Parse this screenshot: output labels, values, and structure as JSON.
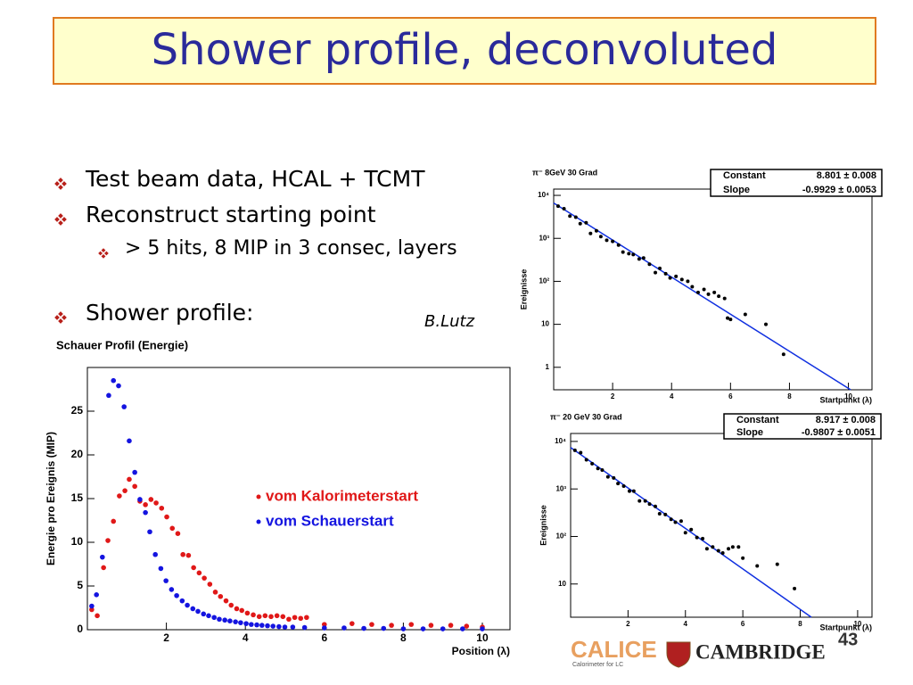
{
  "title": "Shower profile, deconvoluted",
  "bullets": [
    {
      "text": "Test beam data, HCAL + TCMT",
      "level": 1
    },
    {
      "text": "Reconstruct starting point",
      "level": 1
    },
    {
      "text": "> 5 hits, 8 MIP in 3 consec, layers",
      "level": 2
    },
    {
      "text": "Shower profile:",
      "level": 1
    }
  ],
  "author": "B.Lutz",
  "footer": {
    "logo": "CALICE",
    "logo_subtitle": "Calorimeter for LC",
    "university": "CAMBRIDGE",
    "page_number": "43"
  },
  "chart_data": [
    {
      "type": "scatter",
      "title": "Schauer Profil (Energie)",
      "x_label": "Position (λ)",
      "y_label": "Energie pro Ereignis (MIP)",
      "xlim": [
        0,
        10.7
      ],
      "ylim": [
        0,
        30
      ],
      "xticks": [
        2,
        4,
        6,
        8,
        10
      ],
      "yticks": [
        0,
        5,
        10,
        15,
        20,
        25
      ],
      "legend": "center right",
      "series": [
        {
          "name": "vom Kalorimeterstart",
          "color": "#e01818",
          "x": [
            0.11,
            0.25,
            0.41,
            0.52,
            0.66,
            0.81,
            0.95,
            1.06,
            1.2,
            1.33,
            1.47,
            1.61,
            1.74,
            1.88,
            2.01,
            2.15,
            2.29,
            2.42,
            2.56,
            2.69,
            2.83,
            2.96,
            3.1,
            3.24,
            3.37,
            3.51,
            3.64,
            3.78,
            3.91,
            4.05,
            4.2,
            4.35,
            4.5,
            4.65,
            4.8,
            4.95,
            5.1,
            5.25,
            5.4,
            5.55,
            6.0,
            6.7,
            7.2,
            7.7,
            8.2,
            8.7,
            9.2,
            9.6,
            10.0
          ],
          "values": [
            2.3,
            1.6,
            7.1,
            10.2,
            12.4,
            15.3,
            15.9,
            17.2,
            16.4,
            14.7,
            14.3,
            14.9,
            14.5,
            13.9,
            12.9,
            11.6,
            11.0,
            8.6,
            8.5,
            7.1,
            6.5,
            5.9,
            5.2,
            4.3,
            3.8,
            3.3,
            2.8,
            2.4,
            2.2,
            1.9,
            1.7,
            1.5,
            1.6,
            1.5,
            1.6,
            1.5,
            1.2,
            1.4,
            1.3,
            1.4,
            0.6,
            0.7,
            0.6,
            0.5,
            0.6,
            0.5,
            0.5,
            0.4,
            0.3
          ]
        },
        {
          "name": "vom Schauerstart",
          "color": "#1414e0",
          "x": [
            0.11,
            0.23,
            0.38,
            0.54,
            0.66,
            0.79,
            0.93,
            1.06,
            1.2,
            1.33,
            1.47,
            1.58,
            1.72,
            1.86,
            1.99,
            2.13,
            2.26,
            2.4,
            2.53,
            2.67,
            2.8,
            2.94,
            3.07,
            3.21,
            3.34,
            3.48,
            3.61,
            3.75,
            3.88,
            4.02,
            4.15,
            4.29,
            4.42,
            4.56,
            4.7,
            4.85,
            5.0,
            5.2,
            5.5,
            6.0,
            6.5,
            7.0,
            7.5,
            8.0,
            8.5,
            9.0,
            9.5,
            10.0
          ],
          "values": [
            2.7,
            4.0,
            8.3,
            26.8,
            28.5,
            27.9,
            25.5,
            21.6,
            18.0,
            14.9,
            13.4,
            11.2,
            8.6,
            7.0,
            5.6,
            4.6,
            3.9,
            3.3,
            2.8,
            2.4,
            2.1,
            1.8,
            1.6,
            1.4,
            1.2,
            1.1,
            1.0,
            0.9,
            0.8,
            0.7,
            0.6,
            0.55,
            0.5,
            0.45,
            0.4,
            0.35,
            0.3,
            0.3,
            0.25,
            0.2,
            0.2,
            0.15,
            0.15,
            0.1,
            0.1,
            0.1,
            0.1,
            0.1
          ]
        }
      ]
    },
    {
      "type": "scatter",
      "title": "π⁻ 8GeV 30 Grad",
      "x_label": "Startpunkt (λ)",
      "y_label": "Ereignisse",
      "log_y": true,
      "xlim": [
        0,
        10.8
      ],
      "ylim": [
        0.3,
        14000
      ],
      "xticks": [
        2,
        4,
        6,
        8,
        10
      ],
      "yticks": [
        1,
        10,
        {
          "value": 100,
          "label": "10²"
        },
        {
          "value": 1000,
          "label": "10³"
        },
        {
          "value": 10000,
          "label": "10⁴"
        }
      ],
      "series": [
        {
          "color": "#000000",
          "x": [
            0.15,
            0.35,
            0.55,
            0.75,
            0.9,
            1.1,
            1.25,
            1.45,
            1.6,
            1.8,
            2.0,
            2.2,
            2.35,
            2.55,
            2.7,
            2.9,
            3.05,
            3.25,
            3.45,
            3.6,
            3.8,
            3.95,
            4.15,
            4.35,
            4.55,
            4.7,
            4.9,
            5.1,
            5.25,
            5.45,
            5.6,
            5.8,
            5.9,
            6.0,
            6.5,
            7.2,
            7.8
          ],
          "values": [
            5600,
            4900,
            3300,
            3100,
            2200,
            2300,
            1300,
            1500,
            1100,
            900,
            850,
            700,
            480,
            440,
            420,
            330,
            350,
            250,
            160,
            200,
            150,
            120,
            130,
            110,
            100,
            75,
            55,
            65,
            50,
            55,
            45,
            40,
            14,
            13,
            17,
            10,
            2
          ]
        }
      ],
      "fit": {
        "color": "#1030e0",
        "names": [
          "Constant",
          "Slope"
        ],
        "values": [
          8.801,
          -0.9929
        ],
        "value_labels": [
          "8.801 ± 0.008",
          "-0.9929 ± 0.0053"
        ]
      }
    },
    {
      "type": "scatter",
      "title": "π⁻ 20 GeV 30 Grad",
      "x_label": "Startpunkt (λ)",
      "y_label": "Ereignisse",
      "log_y": true,
      "xlim": [
        0,
        10.5
      ],
      "ylim": [
        2,
        14700
      ],
      "xticks": [
        2,
        4,
        6,
        8,
        10
      ],
      "yticks": [
        10,
        {
          "value": 100,
          "label": "10²"
        },
        {
          "value": 1000,
          "label": "10³"
        },
        {
          "value": 10000,
          "label": "10⁴"
        }
      ],
      "series": [
        {
          "color": "#000000",
          "x": [
            0.15,
            0.35,
            0.55,
            0.75,
            0.95,
            1.1,
            1.3,
            1.5,
            1.65,
            1.85,
            2.05,
            2.2,
            2.4,
            2.6,
            2.75,
            2.95,
            3.1,
            3.3,
            3.5,
            3.65,
            3.85,
            4.0,
            4.2,
            4.4,
            4.6,
            4.75,
            4.95,
            5.15,
            5.3,
            5.5,
            5.65,
            5.85,
            6.0,
            6.5,
            7.2,
            7.8
          ],
          "values": [
            6500,
            5800,
            4100,
            3400,
            2700,
            2500,
            1800,
            1700,
            1300,
            1150,
            900,
            900,
            560,
            560,
            480,
            430,
            300,
            290,
            230,
            200,
            210,
            120,
            140,
            95,
            90,
            55,
            60,
            50,
            45,
            55,
            60,
            60,
            35,
            24,
            26,
            8
          ]
        }
      ],
      "fit": {
        "color": "#1030e0",
        "names": [
          "Constant",
          "Slope"
        ],
        "values": [
          8.917,
          -0.9807
        ],
        "value_labels": [
          "8.917 ± 0.008",
          "-0.9807 ± 0.0051"
        ]
      }
    }
  ]
}
